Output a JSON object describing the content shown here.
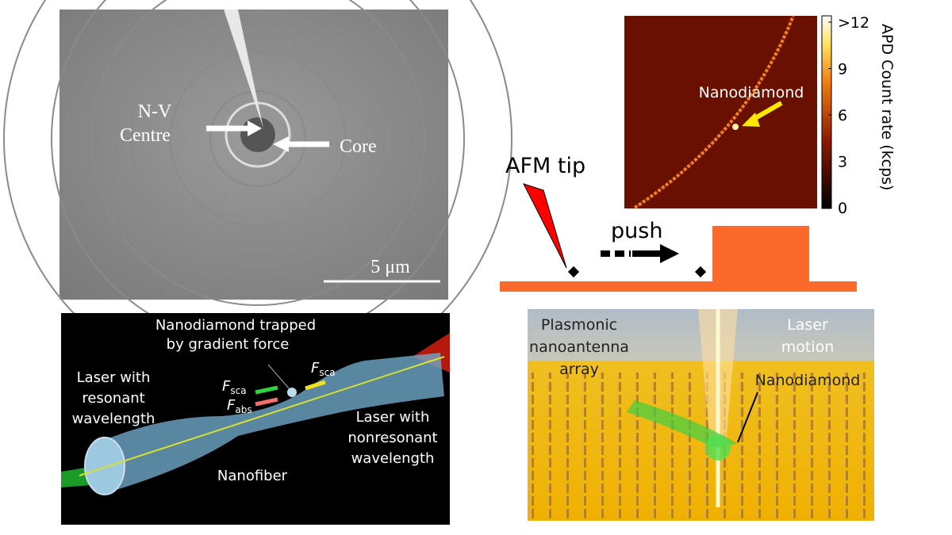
{
  "sem_panel": {
    "nv_label": [
      "N-V",
      "Centre"
    ],
    "core_label": "Core",
    "scale_bar": "5 μm"
  },
  "fluorescence_panel": {
    "particle_label": "Nanodiamond",
    "colorbar_ticks": [
      ">12",
      "9",
      "6",
      "3",
      "0"
    ],
    "colorbar_label": "APD Count rate (kcps)"
  },
  "afm_panel": {
    "tip_label": "AFM tip",
    "push_label": "push"
  },
  "nanofiber_panel": {
    "trapped_label": [
      "Nanodiamond trapped",
      "by gradient force"
    ],
    "resonant_label": [
      "Laser with",
      "resonant",
      "wavelength"
    ],
    "nonresonant_label": [
      "Laser with",
      "nonresonant",
      "wavelength"
    ],
    "fiber_label": "Nanofiber",
    "forces": [
      {
        "symbol": "F",
        "subscript": "sca"
      },
      {
        "symbol": "F",
        "subscript": "abs"
      },
      {
        "symbol": "F",
        "subscript": "sca"
      }
    ]
  },
  "antenna_panel": {
    "array_label": [
      "Plasmonic",
      "nanoantenna",
      "array"
    ],
    "motion_label": [
      "Laser",
      "motion"
    ],
    "particle_label": "Nanodiamond"
  }
}
